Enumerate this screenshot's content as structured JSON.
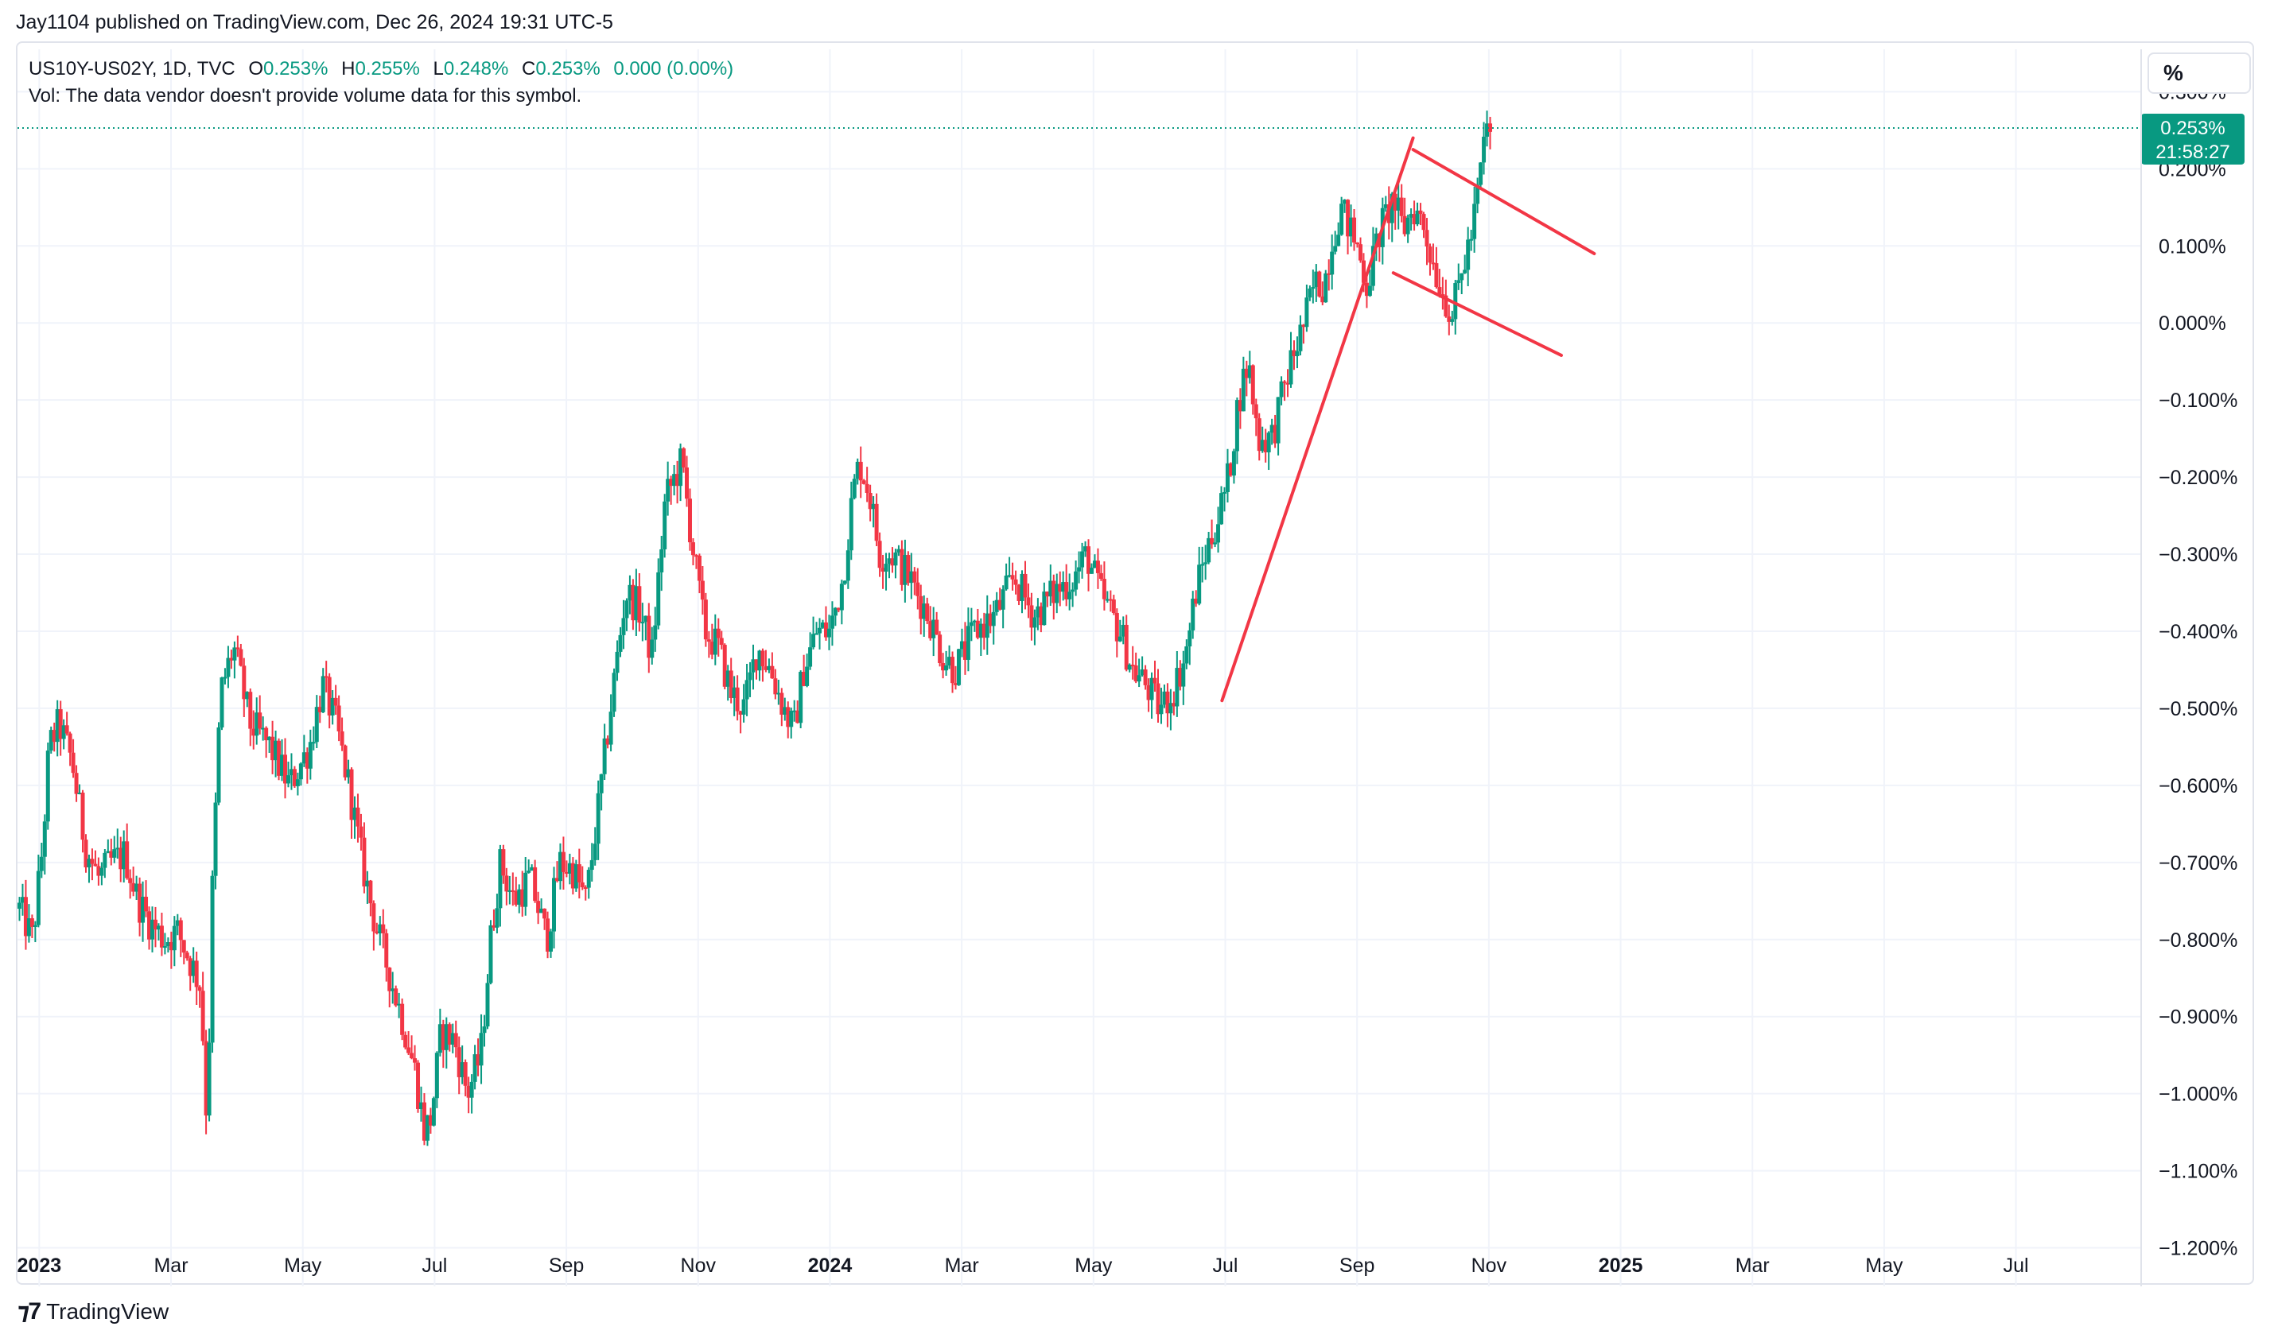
{
  "header": {
    "published_line": "Jay1104 published on TradingView.com, Dec 26, 2024 19:31 UTC-5"
  },
  "legend": {
    "symbol_line": "US10Y-US02Y, 1D, TVC",
    "open_label": "O",
    "open": "0.253%",
    "high_label": "H",
    "high": "0.255%",
    "low_label": "L",
    "low": "0.248%",
    "close_label": "C",
    "close": "0.253%",
    "change": "0.000 (0.00%)",
    "vol_line": "Vol: The data vendor doesn't provide volume data for this symbol."
  },
  "toolbar": {
    "percent_button": "%"
  },
  "price_tag": {
    "value": "0.253%",
    "countdown": "21:58:27"
  },
  "footer": {
    "brand": "TradingView"
  },
  "colors": {
    "up": "#089981",
    "down": "#f23645",
    "drawing": "#f23645",
    "grid": "#f0f3fa",
    "axis_text": "#131722"
  },
  "chart_data": {
    "type": "candlestick",
    "title": "US10Y-US02Y, 1D, TVC",
    "ylabel": "%",
    "ylim": [
      -1.25,
      0.32
    ],
    "y_ticks": [
      "0.300%",
      "0.200%",
      "0.100%",
      "0.000%",
      "−0.100%",
      "−0.200%",
      "−0.300%",
      "−0.400%",
      "−0.500%",
      "−0.600%",
      "−0.700%",
      "−0.800%",
      "−0.900%",
      "−1.000%",
      "−1.100%",
      "−1.200%"
    ],
    "y_tick_values": [
      0.3,
      0.2,
      0.1,
      0.0,
      -0.1,
      -0.2,
      -0.3,
      -0.4,
      -0.5,
      -0.6,
      -0.7,
      -0.8,
      -0.9,
      -1.0,
      -1.1,
      -1.2
    ],
    "x_ticks": [
      {
        "label": "2023",
        "month": 0,
        "bold": true
      },
      {
        "label": "Mar",
        "month": 2,
        "bold": false
      },
      {
        "label": "May",
        "month": 4,
        "bold": false
      },
      {
        "label": "Jul",
        "month": 6,
        "bold": false
      },
      {
        "label": "Sep",
        "month": 8,
        "bold": false
      },
      {
        "label": "Nov",
        "month": 10,
        "bold": false
      },
      {
        "label": "2024",
        "month": 12,
        "bold": true
      },
      {
        "label": "Mar",
        "month": 14,
        "bold": false
      },
      {
        "label": "May",
        "month": 16,
        "bold": false
      },
      {
        "label": "Jul",
        "month": 18,
        "bold": false
      },
      {
        "label": "Sep",
        "month": 20,
        "bold": false
      },
      {
        "label": "Nov",
        "month": 22,
        "bold": false
      },
      {
        "label": "2025",
        "month": 24,
        "bold": true
      },
      {
        "label": "Mar",
        "month": 26,
        "bold": false
      },
      {
        "label": "May",
        "month": 28,
        "bold": false
      },
      {
        "label": "Jul",
        "month": 30,
        "bold": false
      }
    ],
    "x_range_months": [
      -0.33,
      31.9
    ],
    "last_value": 0.253,
    "price_path": [
      [
        -0.3,
        -0.76
      ],
      [
        -0.1,
        -0.8
      ],
      [
        0.05,
        -0.68
      ],
      [
        0.15,
        -0.55
      ],
      [
        0.3,
        -0.52
      ],
      [
        0.5,
        -0.57
      ],
      [
        0.7,
        -0.68
      ],
      [
        0.9,
        -0.72
      ],
      [
        1.1,
        -0.7
      ],
      [
        1.3,
        -0.69
      ],
      [
        1.5,
        -0.75
      ],
      [
        1.7,
        -0.78
      ],
      [
        1.9,
        -0.8
      ],
      [
        2.1,
        -0.79
      ],
      [
        2.3,
        -0.83
      ],
      [
        2.45,
        -0.86
      ],
      [
        2.55,
        -1.05
      ],
      [
        2.62,
        -0.75
      ],
      [
        2.75,
        -0.48
      ],
      [
        2.95,
        -0.42
      ],
      [
        3.2,
        -0.52
      ],
      [
        3.5,
        -0.55
      ],
      [
        3.8,
        -0.6
      ],
      [
        4.1,
        -0.55
      ],
      [
        4.3,
        -0.47
      ],
      [
        4.5,
        -0.52
      ],
      [
        4.7,
        -0.6
      ],
      [
        4.9,
        -0.7
      ],
      [
        5.1,
        -0.78
      ],
      [
        5.3,
        -0.84
      ],
      [
        5.5,
        -0.9
      ],
      [
        5.7,
        -0.97
      ],
      [
        5.85,
        -1.05
      ],
      [
        5.95,
        -1.03
      ],
      [
        6.1,
        -0.92
      ],
      [
        6.3,
        -0.93
      ],
      [
        6.5,
        -1.0
      ],
      [
        6.7,
        -0.95
      ],
      [
        6.85,
        -0.8
      ],
      [
        7.0,
        -0.7
      ],
      [
        7.2,
        -0.75
      ],
      [
        7.45,
        -0.72
      ],
      [
        7.7,
        -0.8
      ],
      [
        7.9,
        -0.7
      ],
      [
        8.1,
        -0.71
      ],
      [
        8.3,
        -0.75
      ],
      [
        8.5,
        -0.62
      ],
      [
        8.7,
        -0.48
      ],
      [
        8.9,
        -0.35
      ],
      [
        9.1,
        -0.37
      ],
      [
        9.3,
        -0.43
      ],
      [
        9.5,
        -0.23
      ],
      [
        9.65,
        -0.2
      ],
      [
        9.75,
        -0.18
      ],
      [
        9.9,
        -0.28
      ],
      [
        10.1,
        -0.4
      ],
      [
        10.3,
        -0.42
      ],
      [
        10.5,
        -0.48
      ],
      [
        10.7,
        -0.5
      ],
      [
        10.9,
        -0.42
      ],
      [
        11.1,
        -0.45
      ],
      [
        11.3,
        -0.5
      ],
      [
        11.45,
        -0.53
      ],
      [
        11.6,
        -0.45
      ],
      [
        11.8,
        -0.4
      ],
      [
        12.0,
        -0.4
      ],
      [
        12.2,
        -0.33
      ],
      [
        12.35,
        -0.22
      ],
      [
        12.45,
        -0.18
      ],
      [
        12.6,
        -0.22
      ],
      [
        12.75,
        -0.3
      ],
      [
        12.95,
        -0.3
      ],
      [
        13.2,
        -0.33
      ],
      [
        13.5,
        -0.38
      ],
      [
        13.7,
        -0.43
      ],
      [
        13.9,
        -0.45
      ],
      [
        14.2,
        -0.4
      ],
      [
        14.5,
        -0.38
      ],
      [
        14.8,
        -0.33
      ],
      [
        15.1,
        -0.38
      ],
      [
        15.4,
        -0.35
      ],
      [
        15.7,
        -0.33
      ],
      [
        15.9,
        -0.3
      ],
      [
        16.1,
        -0.35
      ],
      [
        16.4,
        -0.4
      ],
      [
        16.6,
        -0.45
      ],
      [
        16.8,
        -0.47
      ],
      [
        17.0,
        -0.5
      ],
      [
        17.2,
        -0.48
      ],
      [
        17.4,
        -0.43
      ],
      [
        17.55,
        -0.35
      ],
      [
        17.7,
        -0.3
      ],
      [
        17.9,
        -0.25
      ],
      [
        18.05,
        -0.2
      ],
      [
        18.2,
        -0.1
      ],
      [
        18.35,
        -0.05
      ],
      [
        18.5,
        -0.15
      ],
      [
        18.7,
        -0.15
      ],
      [
        18.85,
        -0.1
      ],
      [
        19.0,
        -0.05
      ],
      [
        19.2,
        0.0
      ],
      [
        19.35,
        0.05
      ],
      [
        19.5,
        0.05
      ],
      [
        19.6,
        0.1
      ],
      [
        19.75,
        0.15
      ],
      [
        19.85,
        0.13
      ],
      [
        20.0,
        0.1
      ],
      [
        20.15,
        0.05
      ],
      [
        20.35,
        0.12
      ],
      [
        20.55,
        0.16
      ],
      [
        20.7,
        0.12
      ],
      [
        20.85,
        0.15
      ],
      [
        21.0,
        0.13
      ],
      [
        21.15,
        0.08
      ],
      [
        21.3,
        0.04
      ],
      [
        21.45,
        0.01
      ],
      [
        21.6,
        0.07
      ],
      [
        21.75,
        0.12
      ],
      [
        21.85,
        0.18
      ],
      [
        21.95,
        0.25
      ],
      [
        22.05,
        0.25
      ]
    ],
    "annotations": [
      {
        "name": "pole-trendline",
        "type": "trendline",
        "from": [
          17.95,
          -0.49
        ],
        "to": [
          20.85,
          0.24
        ]
      },
      {
        "name": "flag-upper-trendline",
        "type": "trendline",
        "from": [
          20.85,
          0.225
        ],
        "to": [
          23.6,
          0.09
        ]
      },
      {
        "name": "flag-lower-trendline",
        "type": "trendline",
        "from": [
          20.55,
          0.065
        ],
        "to": [
          23.1,
          -0.042
        ]
      }
    ]
  }
}
